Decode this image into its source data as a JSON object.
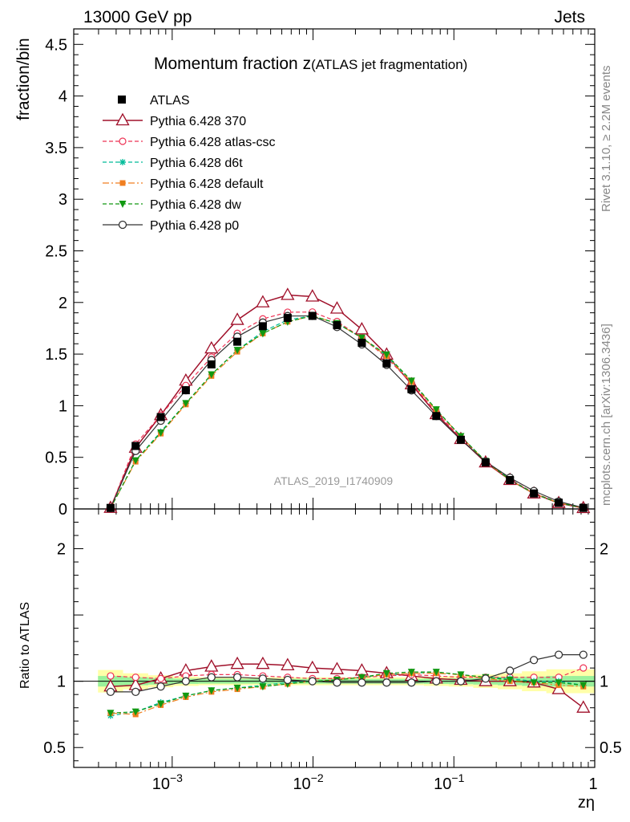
{
  "header": {
    "left": "13000 GeV pp",
    "right": "Jets"
  },
  "side_labels": {
    "rivet": "Rivet 3.1.10, ≥ 2.2M events",
    "mcplots": "mcplots.cern.ch [arXiv:1306.3436]"
  },
  "chart_data": {
    "type": "scatter",
    "title": "Momentum fraction z",
    "subtitle": "(ATLAS jet fragmentation)",
    "analysis_tag": "ATLAS_2019_I1740909",
    "xlabel": "zη",
    "ylabel": "fraction/bin",
    "ratio_ylabel": "Ratio to ATLAS",
    "xscale": "log",
    "xlim": [
      0.0002,
      1
    ],
    "ylim": [
      0,
      4.65
    ],
    "ratio_ylim": [
      0.35,
      2.3
    ],
    "x_tick_labels": [
      "10^-3",
      "10^-2",
      "10^-1",
      "1"
    ],
    "y_tick_labels": [
      "0",
      "0.5",
      "1",
      "1.5",
      "2",
      "2.5",
      "3",
      "3.5",
      "4",
      "4.5"
    ],
    "ratio_tick_labels": [
      "0.5",
      "1",
      "2"
    ],
    "legend_position": "top-left",
    "x": [
      0.000365,
      0.00055,
      0.00083,
      0.00125,
      0.0019,
      0.0029,
      0.0044,
      0.0066,
      0.0099,
      0.0148,
      0.0222,
      0.0333,
      0.05,
      0.075,
      0.112,
      0.168,
      0.25,
      0.37,
      0.555,
      0.83
    ],
    "data": {
      "name": "ATLAS",
      "values": [
        0.01,
        0.61,
        0.89,
        1.15,
        1.4,
        1.62,
        1.77,
        1.85,
        1.87,
        1.78,
        1.61,
        1.41,
        1.16,
        0.9,
        0.67,
        0.45,
        0.28,
        0.15,
        0.06,
        0.01
      ]
    },
    "series": [
      {
        "name": "Pythia 6.428 370",
        "color": "#a0102a",
        "ratio": [
          0.96,
          0.97,
          1.02,
          1.08,
          1.11,
          1.13,
          1.13,
          1.12,
          1.1,
          1.09,
          1.08,
          1.06,
          1.04,
          1.02,
          1.01,
          1.0,
          1.0,
          0.99,
          0.94,
          0.8
        ]
      },
      {
        "name": "Pythia 6.428 atlas-csc",
        "color": "#ee3355",
        "ratio": [
          1.04,
          1.03,
          1.02,
          1.04,
          1.05,
          1.05,
          1.04,
          1.03,
          1.02,
          1.02,
          1.03,
          1.04,
          1.05,
          1.04,
          1.03,
          1.03,
          1.03,
          1.03,
          1.03,
          1.1
        ]
      },
      {
        "name": "Pythia 6.428 d6t",
        "color": "#00bb99",
        "ratio": [
          0.74,
          0.77,
          0.84,
          0.89,
          0.93,
          0.95,
          0.97,
          0.99,
          1.0,
          1.01,
          1.03,
          1.05,
          1.06,
          1.07,
          1.05,
          1.03,
          1.02,
          1.0,
          1.0,
          0.97
        ]
      },
      {
        "name": "Pythia 6.428 default",
        "color": "#f07f20",
        "ratio": [
          0.76,
          0.75,
          0.82,
          0.88,
          0.92,
          0.94,
          0.96,
          0.98,
          1.0,
          1.01,
          1.03,
          1.05,
          1.06,
          1.06,
          1.05,
          1.02,
          1.0,
          0.99,
          0.97,
          0.96
        ]
      },
      {
        "name": "Pythia 6.428 dw",
        "color": "#119911",
        "ratio": [
          0.76,
          0.77,
          0.83,
          0.89,
          0.93,
          0.95,
          0.96,
          0.98,
          1.0,
          1.01,
          1.03,
          1.06,
          1.07,
          1.07,
          1.05,
          1.03,
          1.01,
          0.99,
          0.99,
          0.97
        ]
      },
      {
        "name": "Pythia 6.428 p0",
        "color": "#333333",
        "ratio": [
          0.92,
          0.92,
          0.96,
          1.0,
          1.03,
          1.03,
          1.02,
          1.01,
          1.0,
          0.99,
          0.99,
          0.99,
          0.99,
          1.0,
          1.0,
          1.02,
          1.08,
          1.16,
          1.2,
          1.2
        ]
      }
    ]
  }
}
